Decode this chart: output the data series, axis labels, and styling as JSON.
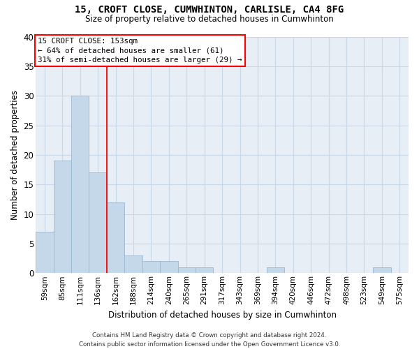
{
  "title_line1": "15, CROFT CLOSE, CUMWHINTON, CARLISLE, CA4 8FG",
  "title_line2": "Size of property relative to detached houses in Cumwhinton",
  "xlabel": "Distribution of detached houses by size in Cumwhinton",
  "ylabel": "Number of detached properties",
  "bin_labels": [
    "59sqm",
    "85sqm",
    "111sqm",
    "136sqm",
    "162sqm",
    "188sqm",
    "214sqm",
    "240sqm",
    "265sqm",
    "291sqm",
    "317sqm",
    "343sqm",
    "369sqm",
    "394sqm",
    "420sqm",
    "446sqm",
    "472sqm",
    "498sqm",
    "523sqm",
    "549sqm",
    "575sqm"
  ],
  "bar_values": [
    7,
    19,
    30,
    17,
    12,
    3,
    2,
    2,
    1,
    1,
    0,
    0,
    0,
    1,
    0,
    0,
    0,
    0,
    0,
    1,
    0
  ],
  "bar_color": "#c5d8ea",
  "bar_edgecolor": "#9ab8d0",
  "grid_color": "#c8d8e8",
  "bg_color": "#e8eef5",
  "red_line_x": 3.5,
  "annotation_title": "15 CROFT CLOSE: 153sqm",
  "annotation_line1": "← 64% of detached houses are smaller (61)",
  "annotation_line2": "31% of semi-detached houses are larger (29) →",
  "footer_line1": "Contains HM Land Registry data © Crown copyright and database right 2024.",
  "footer_line2": "Contains public sector information licensed under the Open Government Licence v3.0.",
  "ylim": [
    0,
    40
  ],
  "yticks": [
    0,
    5,
    10,
    15,
    20,
    25,
    30,
    35,
    40
  ],
  "ann_fontsize": 7.8,
  "title1_fontsize": 10,
  "title2_fontsize": 8.5,
  "xlabel_fontsize": 8.5,
  "ylabel_fontsize": 8.5,
  "tick_fontsize": 7.5,
  "footer_fontsize": 6.2
}
